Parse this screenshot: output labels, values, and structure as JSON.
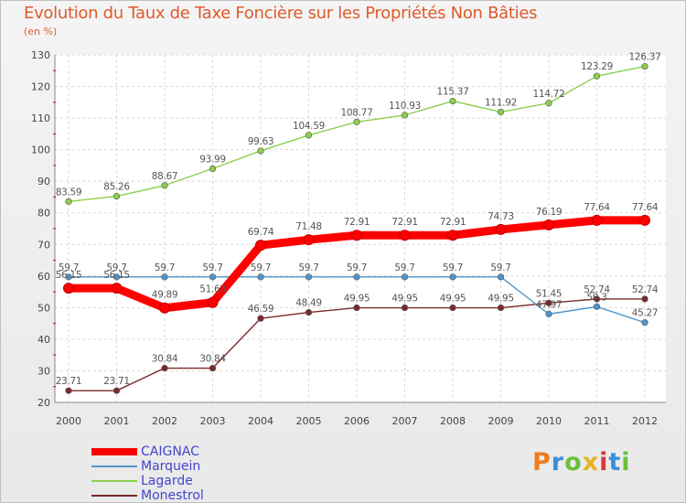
{
  "title": "Evolution du Taux de Taxe Foncière sur les Propriétés Non Bâties",
  "unit_label": "(en %)",
  "logo": {
    "text": "Proxiti",
    "colors": [
      "#f07c1f",
      "#3a8fd6",
      "#6cbf3b",
      "#e8b21f",
      "#d63a3a",
      "#3a8fd6",
      "#6cbf3b"
    ]
  },
  "chart_data": {
    "type": "line",
    "title": "Evolution du Taux de Taxe Foncière sur les Propriétés Non Bâties",
    "ylabel": "(en %)",
    "x": [
      "2000",
      "2001",
      "2002",
      "2003",
      "2004",
      "2005",
      "2006",
      "2007",
      "2008",
      "2009",
      "2010",
      "2011",
      "2012"
    ],
    "ylim": [
      20,
      130
    ],
    "yticks": [
      "20",
      "30",
      "40",
      "50",
      "60",
      "70",
      "80",
      "90",
      "100",
      "110",
      "120",
      "130"
    ],
    "grid": true,
    "legend_position": "bottom-left",
    "series": [
      {
        "name": "CAIGNAC",
        "color": "#ff0000",
        "thick": true,
        "values": [
          56.15,
          56.15,
          49.89,
          51.63,
          69.74,
          71.48,
          72.91,
          72.91,
          72.91,
          74.73,
          76.19,
          77.64,
          77.64
        ],
        "labels": [
          "56.15",
          "56.15",
          "49.89",
          "51.63",
          "69.74",
          "71.48",
          "72.91",
          "72.91",
          "72.91",
          "74.73",
          "76.19",
          "77.64",
          "77.64"
        ]
      },
      {
        "name": "Marquein",
        "color": "#4f95cc",
        "thick": false,
        "values": [
          59.7,
          59.7,
          59.7,
          59.7,
          59.7,
          59.7,
          59.7,
          59.7,
          59.7,
          59.7,
          47.97,
          50.3,
          45.27
        ],
        "labels": [
          "59.7",
          "59.7",
          "59.7",
          "59.7",
          "59.7",
          "59.7",
          "59.7",
          "59.7",
          "59.7",
          "59.7",
          "47.97",
          "50.3",
          "45.27"
        ]
      },
      {
        "name": "Lagarde",
        "color": "#8ccf4e",
        "thick": false,
        "values": [
          83.59,
          85.26,
          88.67,
          93.99,
          99.63,
          104.59,
          108.77,
          110.93,
          115.37,
          111.92,
          114.72,
          123.29,
          126.37
        ],
        "labels": [
          "83.59",
          "85.26",
          "88.67",
          "93.99",
          "99.63",
          "104.59",
          "108.77",
          "110.93",
          "115.37",
          "111.92",
          "114.72",
          "123.29",
          "126.37"
        ]
      },
      {
        "name": "Monestrol",
        "color": "#7a2a2a",
        "thick": false,
        "values": [
          23.71,
          23.71,
          30.84,
          30.84,
          46.59,
          48.49,
          49.95,
          49.95,
          49.95,
          49.95,
          51.45,
          52.74,
          52.74
        ],
        "labels": [
          "23.71",
          "23.71",
          "30.84",
          "30.84",
          "46.59",
          "48.49",
          "49.95",
          "49.95",
          "49.95",
          "49.95",
          "51.45",
          "52.74",
          "52.74"
        ]
      }
    ]
  }
}
